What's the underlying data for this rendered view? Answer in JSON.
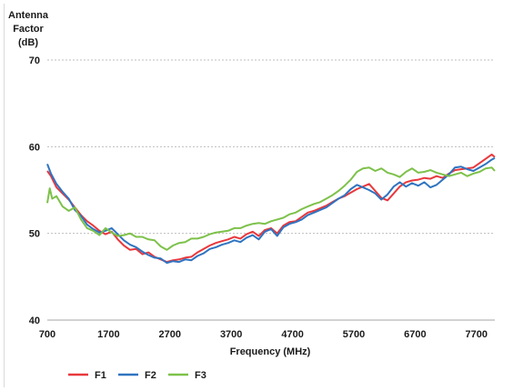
{
  "chart_data": {
    "type": "line",
    "ylabel_lines": [
      "Antenna",
      "Factor",
      "(dB)"
    ],
    "xlabel": "Frequency (MHz)",
    "xlim": [
      700,
      8000
    ],
    "ylim": [
      40,
      70
    ],
    "xticks": [
      700,
      1700,
      2700,
      3700,
      4700,
      5700,
      6700,
      7700
    ],
    "yticks": [
      40,
      50,
      60,
      70
    ],
    "grid": "horizontal dashed",
    "legend_position": "bottom-left",
    "series": [
      {
        "name": "F1",
        "color": "#e8383d",
        "points": [
          [
            700,
            57.2
          ],
          [
            760,
            56.6
          ],
          [
            850,
            55.3
          ],
          [
            950,
            54.6
          ],
          [
            1050,
            53.9
          ],
          [
            1150,
            53.0
          ],
          [
            1250,
            52.1
          ],
          [
            1350,
            51.4
          ],
          [
            1450,
            50.9
          ],
          [
            1550,
            50.3
          ],
          [
            1650,
            49.9
          ],
          [
            1750,
            50.2
          ],
          [
            1850,
            49.3
          ],
          [
            1950,
            48.6
          ],
          [
            2050,
            48.1
          ],
          [
            2150,
            48.2
          ],
          [
            2250,
            47.6
          ],
          [
            2350,
            47.8
          ],
          [
            2450,
            47.3
          ],
          [
            2550,
            47.0
          ],
          [
            2650,
            46.7
          ],
          [
            2750,
            46.9
          ],
          [
            2850,
            47.0
          ],
          [
            2950,
            47.2
          ],
          [
            3050,
            47.3
          ],
          [
            3150,
            47.8
          ],
          [
            3250,
            48.2
          ],
          [
            3350,
            48.6
          ],
          [
            3450,
            48.9
          ],
          [
            3550,
            49.1
          ],
          [
            3650,
            49.3
          ],
          [
            3750,
            49.6
          ],
          [
            3850,
            49.4
          ],
          [
            3950,
            49.9
          ],
          [
            4050,
            50.2
          ],
          [
            4150,
            49.7
          ],
          [
            4250,
            50.4
          ],
          [
            4350,
            50.6
          ],
          [
            4450,
            50.0
          ],
          [
            4550,
            50.9
          ],
          [
            4650,
            51.3
          ],
          [
            4750,
            51.4
          ],
          [
            4850,
            51.9
          ],
          [
            4950,
            52.4
          ],
          [
            5050,
            52.6
          ],
          [
            5150,
            52.9
          ],
          [
            5250,
            53.2
          ],
          [
            5350,
            53.6
          ],
          [
            5450,
            54.0
          ],
          [
            5550,
            54.3
          ],
          [
            5650,
            54.7
          ],
          [
            5750,
            55.1
          ],
          [
            5850,
            55.4
          ],
          [
            5950,
            55.7
          ],
          [
            6050,
            54.9
          ],
          [
            6150,
            54.1
          ],
          [
            6250,
            53.8
          ],
          [
            6350,
            54.6
          ],
          [
            6450,
            55.4
          ],
          [
            6550,
            55.9
          ],
          [
            6650,
            56.1
          ],
          [
            6750,
            56.2
          ],
          [
            6850,
            56.4
          ],
          [
            6950,
            56.3
          ],
          [
            7050,
            56.6
          ],
          [
            7150,
            56.4
          ],
          [
            7250,
            56.9
          ],
          [
            7350,
            57.3
          ],
          [
            7450,
            57.4
          ],
          [
            7550,
            57.5
          ],
          [
            7650,
            57.6
          ],
          [
            7750,
            58.1
          ],
          [
            7850,
            58.6
          ],
          [
            7950,
            59.1
          ],
          [
            8000,
            58.8
          ]
        ]
      },
      {
        "name": "F2",
        "color": "#2f74c0",
        "points": [
          [
            700,
            58.0
          ],
          [
            760,
            56.9
          ],
          [
            850,
            55.7
          ],
          [
            950,
            54.8
          ],
          [
            1050,
            54.0
          ],
          [
            1150,
            52.7
          ],
          [
            1250,
            52.0
          ],
          [
            1350,
            51.0
          ],
          [
            1450,
            50.5
          ],
          [
            1550,
            50.1
          ],
          [
            1650,
            50.3
          ],
          [
            1750,
            50.6
          ],
          [
            1850,
            49.9
          ],
          [
            1950,
            49.2
          ],
          [
            2050,
            48.7
          ],
          [
            2150,
            48.4
          ],
          [
            2250,
            47.9
          ],
          [
            2350,
            47.5
          ],
          [
            2450,
            47.2
          ],
          [
            2550,
            47.1
          ],
          [
            2650,
            46.6
          ],
          [
            2750,
            46.8
          ],
          [
            2850,
            46.7
          ],
          [
            2950,
            47.0
          ],
          [
            3050,
            46.9
          ],
          [
            3150,
            47.4
          ],
          [
            3250,
            47.7
          ],
          [
            3350,
            48.2
          ],
          [
            3450,
            48.4
          ],
          [
            3550,
            48.7
          ],
          [
            3650,
            48.9
          ],
          [
            3750,
            49.2
          ],
          [
            3850,
            49.0
          ],
          [
            3950,
            49.5
          ],
          [
            4050,
            49.8
          ],
          [
            4150,
            49.3
          ],
          [
            4250,
            50.2
          ],
          [
            4350,
            50.5
          ],
          [
            4450,
            49.7
          ],
          [
            4550,
            50.7
          ],
          [
            4650,
            51.1
          ],
          [
            4750,
            51.3
          ],
          [
            4850,
            51.6
          ],
          [
            4950,
            52.1
          ],
          [
            5050,
            52.4
          ],
          [
            5150,
            52.7
          ],
          [
            5250,
            53.0
          ],
          [
            5350,
            53.5
          ],
          [
            5450,
            54.0
          ],
          [
            5550,
            54.4
          ],
          [
            5650,
            55.1
          ],
          [
            5750,
            55.6
          ],
          [
            5850,
            55.3
          ],
          [
            5950,
            55.0
          ],
          [
            6050,
            54.6
          ],
          [
            6150,
            53.9
          ],
          [
            6250,
            54.5
          ],
          [
            6350,
            55.4
          ],
          [
            6450,
            55.9
          ],
          [
            6550,
            55.4
          ],
          [
            6650,
            55.8
          ],
          [
            6750,
            55.5
          ],
          [
            6850,
            55.9
          ],
          [
            6950,
            55.3
          ],
          [
            7050,
            55.6
          ],
          [
            7150,
            56.2
          ],
          [
            7250,
            56.8
          ],
          [
            7350,
            57.6
          ],
          [
            7450,
            57.7
          ],
          [
            7550,
            57.4
          ],
          [
            7650,
            57.2
          ],
          [
            7750,
            57.6
          ],
          [
            7850,
            58.0
          ],
          [
            7950,
            58.5
          ],
          [
            8000,
            58.7
          ]
        ]
      },
      {
        "name": "F3",
        "color": "#7dc14a",
        "points": [
          [
            700,
            53.5
          ],
          [
            740,
            55.2
          ],
          [
            780,
            54.0
          ],
          [
            850,
            54.3
          ],
          [
            950,
            53.1
          ],
          [
            1050,
            52.6
          ],
          [
            1150,
            53.0
          ],
          [
            1250,
            51.6
          ],
          [
            1350,
            50.6
          ],
          [
            1450,
            50.3
          ],
          [
            1550,
            49.8
          ],
          [
            1650,
            50.6
          ],
          [
            1750,
            50.1
          ],
          [
            1850,
            49.7
          ],
          [
            1950,
            49.8
          ],
          [
            2050,
            50.0
          ],
          [
            2150,
            49.6
          ],
          [
            2250,
            49.6
          ],
          [
            2350,
            49.3
          ],
          [
            2450,
            49.2
          ],
          [
            2550,
            48.5
          ],
          [
            2650,
            48.1
          ],
          [
            2750,
            48.6
          ],
          [
            2850,
            48.9
          ],
          [
            2950,
            49.0
          ],
          [
            3050,
            49.4
          ],
          [
            3150,
            49.4
          ],
          [
            3250,
            49.6
          ],
          [
            3350,
            49.9
          ],
          [
            3450,
            50.1
          ],
          [
            3550,
            50.2
          ],
          [
            3650,
            50.3
          ],
          [
            3750,
            50.6
          ],
          [
            3850,
            50.6
          ],
          [
            3950,
            50.9
          ],
          [
            4050,
            51.1
          ],
          [
            4150,
            51.2
          ],
          [
            4250,
            51.1
          ],
          [
            4350,
            51.4
          ],
          [
            4450,
            51.6
          ],
          [
            4550,
            51.8
          ],
          [
            4650,
            52.2
          ],
          [
            4750,
            52.4
          ],
          [
            4850,
            52.8
          ],
          [
            4950,
            53.1
          ],
          [
            5050,
            53.4
          ],
          [
            5150,
            53.6
          ],
          [
            5250,
            54.0
          ],
          [
            5350,
            54.4
          ],
          [
            5450,
            54.9
          ],
          [
            5550,
            55.5
          ],
          [
            5650,
            56.2
          ],
          [
            5750,
            57.1
          ],
          [
            5850,
            57.5
          ],
          [
            5950,
            57.6
          ],
          [
            6050,
            57.2
          ],
          [
            6150,
            57.5
          ],
          [
            6250,
            57.0
          ],
          [
            6350,
            56.8
          ],
          [
            6450,
            56.5
          ],
          [
            6550,
            57.1
          ],
          [
            6650,
            57.5
          ],
          [
            6750,
            57.0
          ],
          [
            6850,
            57.1
          ],
          [
            6950,
            57.3
          ],
          [
            7050,
            57.0
          ],
          [
            7150,
            56.8
          ],
          [
            7250,
            56.6
          ],
          [
            7350,
            56.8
          ],
          [
            7450,
            57.0
          ],
          [
            7550,
            56.6
          ],
          [
            7650,
            56.9
          ],
          [
            7750,
            57.1
          ],
          [
            7850,
            57.5
          ],
          [
            7950,
            57.6
          ],
          [
            8000,
            57.2
          ]
        ]
      }
    ]
  }
}
